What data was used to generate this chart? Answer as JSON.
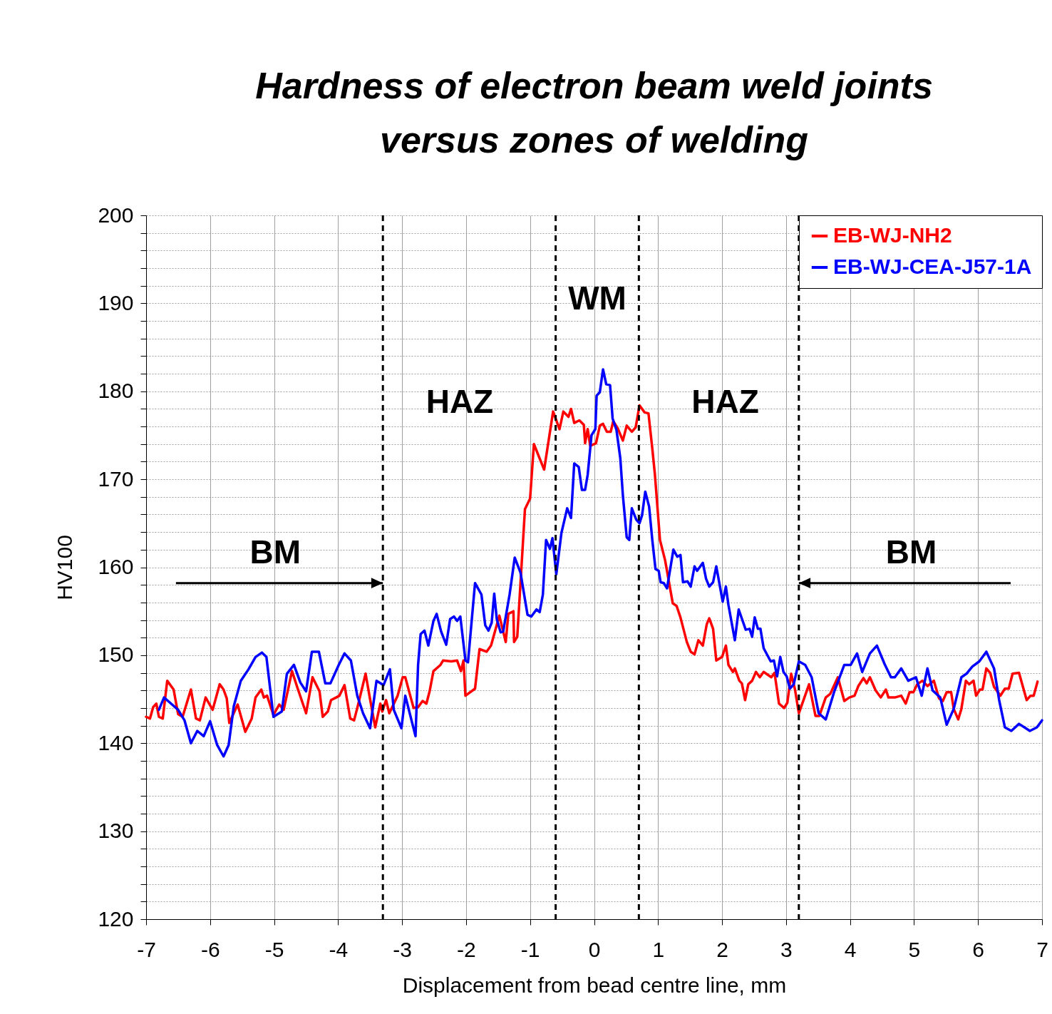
{
  "chart_data": {
    "type": "line",
    "title": "Hardness of electron beam weld joints\nversus zones  of welding",
    "xlabel": "Displacement from bead centre line, mm",
    "ylabel": "HV100",
    "xlim": [
      -7,
      7
    ],
    "xticks": [
      -7,
      -6,
      -5,
      -4,
      -3,
      -2,
      -1,
      0,
      1,
      2,
      3,
      4,
      5,
      6,
      7
    ],
    "ylim": [
      120,
      200
    ],
    "yticks": [
      120,
      {
        "value": 122,
        "label": null
      },
      {
        "value": 124,
        "label": null
      },
      {
        "value": 126,
        "label": null
      },
      {
        "value": 128,
        "label": null
      },
      130,
      {
        "value": 132,
        "label": null
      },
      {
        "value": 134,
        "label": null
      },
      {
        "value": 136,
        "label": null
      },
      {
        "value": 138,
        "label": null
      },
      140,
      {
        "value": 142,
        "label": null
      },
      {
        "value": 144,
        "label": null
      },
      {
        "value": 146,
        "label": null
      },
      {
        "value": 148,
        "label": null
      },
      150,
      {
        "value": 152,
        "label": null
      },
      {
        "value": 154,
        "label": null
      },
      {
        "value": 156,
        "label": null
      },
      {
        "value": 158,
        "label": null
      },
      160,
      {
        "value": 162,
        "label": null
      },
      {
        "value": 164,
        "label": null
      },
      {
        "value": 166,
        "label": null
      },
      {
        "value": 168,
        "label": null
      },
      170,
      {
        "value": 172,
        "label": null
      },
      {
        "value": 174,
        "label": null
      },
      {
        "value": 176,
        "label": null
      },
      {
        "value": 178,
        "label": null
      },
      180,
      {
        "value": 182,
        "label": null
      },
      {
        "value": 184,
        "label": null
      },
      {
        "value": 186,
        "label": null
      },
      {
        "value": 188,
        "label": null
      },
      190,
      {
        "value": 192,
        "label": null
      },
      {
        "value": 194,
        "label": null
      },
      {
        "value": 196,
        "label": null
      },
      {
        "value": 198,
        "label": null
      },
      200
    ],
    "grid": true,
    "legend": "top right",
    "series": [
      {
        "name": "EB-WJ-NH2",
        "color": "#ff0000",
        "x": [
          -7.0,
          -6.94,
          -6.89,
          -6.84,
          -6.8,
          -6.74,
          -6.67,
          -6.57,
          -6.5,
          -6.43,
          -6.3,
          -6.22,
          -6.16,
          -6.07,
          -5.96,
          -5.85,
          -5.79,
          -5.74,
          -5.7,
          -5.57,
          -5.45,
          -5.35,
          -5.29,
          -5.2,
          -5.16,
          -5.11,
          -5.01,
          -4.92,
          -4.85,
          -4.72,
          -4.64,
          -4.5,
          -4.4,
          -4.29,
          -4.24,
          -4.16,
          -4.11,
          -4.03,
          -3.98,
          -3.9,
          -3.81,
          -3.75,
          -3.7,
          -3.57,
          -3.51,
          -3.42,
          -3.34,
          -3.31,
          -3.25,
          -3.2,
          -3.07,
          -2.99,
          -2.95,
          -2.88,
          -2.82,
          -2.75,
          -2.68,
          -2.62,
          -2.57,
          -2.51,
          -2.4,
          -2.36,
          -2.23,
          -2.14,
          -2.08,
          -2.04,
          -2.01,
          -1.86,
          -1.79,
          -1.68,
          -1.61,
          -1.48,
          -1.38,
          -1.34,
          -1.26,
          -1.25,
          -1.2,
          -1.08,
          -1.0,
          -0.94,
          -0.78,
          -0.64,
          -0.54,
          -0.48,
          -0.4,
          -0.36,
          -0.31,
          -0.23,
          -0.16,
          -0.14,
          -0.1,
          -0.06,
          0.03,
          0.09,
          0.14,
          0.2,
          0.26,
          0.3,
          0.37,
          0.45,
          0.51,
          0.59,
          0.65,
          0.71,
          0.79,
          0.85,
          0.91,
          0.95,
          1.03,
          1.11,
          1.23,
          1.29,
          1.35,
          1.45,
          1.51,
          1.57,
          1.63,
          1.7,
          1.76,
          1.8,
          1.86,
          1.91,
          2.0,
          2.06,
          2.1,
          2.17,
          2.2,
          2.27,
          2.31,
          2.36,
          2.41,
          2.47,
          2.53,
          2.59,
          2.65,
          2.77,
          2.82,
          2.89,
          2.97,
          3.02,
          3.08,
          3.14,
          3.2,
          3.36,
          3.46,
          3.52,
          3.62,
          3.69,
          3.81,
          3.91,
          3.99,
          4.07,
          4.13,
          4.21,
          4.26,
          4.31,
          4.4,
          4.48,
          4.56,
          4.6,
          4.7,
          4.8,
          4.87,
          4.93,
          4.99,
          5.05,
          5.13,
          5.21,
          5.31,
          5.39,
          5.45,
          5.51,
          5.58,
          5.62,
          5.69,
          5.74,
          5.81,
          5.86,
          5.93,
          5.97,
          6.03,
          6.07,
          6.13,
          6.19,
          6.25,
          6.35,
          6.42,
          6.48,
          6.54,
          6.64,
          6.76,
          6.82,
          6.87,
          6.93
        ],
        "values": [
          143.0,
          142.8,
          144.1,
          144.5,
          143.0,
          142.8,
          147.1,
          146.1,
          143.3,
          143.0,
          146.1,
          142.8,
          142.6,
          145.2,
          143.8,
          146.7,
          146.1,
          145.1,
          142.3,
          144.4,
          141.3,
          142.8,
          145.2,
          146.1,
          145.2,
          145.4,
          143.2,
          144.4,
          143.8,
          148.2,
          146.4,
          143.4,
          147.5,
          145.9,
          143.0,
          143.6,
          144.9,
          145.2,
          145.4,
          146.6,
          142.8,
          142.6,
          144.0,
          147.9,
          145.4,
          141.8,
          144.5,
          143.6,
          144.9,
          143.4,
          145.4,
          147.5,
          147.5,
          145.6,
          144.0,
          144.1,
          144.8,
          144.5,
          145.9,
          148.2,
          148.9,
          149.4,
          149.3,
          149.4,
          148.2,
          149.4,
          145.4,
          146.2,
          150.7,
          150.4,
          151.1,
          154.5,
          151.5,
          154.7,
          155.0,
          151.5,
          152.1,
          166.6,
          167.8,
          174.0,
          171.1,
          177.7,
          175.7,
          177.7,
          177.1,
          178.0,
          176.4,
          176.7,
          176.2,
          174.1,
          175.7,
          173.8,
          174.1,
          176.1,
          176.3,
          175.4,
          175.4,
          176.6,
          175.8,
          174.4,
          176.1,
          175.4,
          175.9,
          178.4,
          177.6,
          177.5,
          173.5,
          170.6,
          163.1,
          160.8,
          155.9,
          155.6,
          154.3,
          151.5,
          150.4,
          150.1,
          151.7,
          151.1,
          153.5,
          154.2,
          153.0,
          149.4,
          149.8,
          151.1,
          148.9,
          148.1,
          148.5,
          147.1,
          146.8,
          144.9,
          146.7,
          147.1,
          148.1,
          147.5,
          148.1,
          147.5,
          148.0,
          144.5,
          144.0,
          144.6,
          147.9,
          146.1,
          143.4,
          146.7,
          143.1,
          143.1,
          145.2,
          145.6,
          147.5,
          144.8,
          145.2,
          145.4,
          146.5,
          147.4,
          146.8,
          147.5,
          146.0,
          145.2,
          146.1,
          145.2,
          145.2,
          145.4,
          144.5,
          145.8,
          145.8,
          146.7,
          147.1,
          146.5,
          147.1,
          145.1,
          144.8,
          145.8,
          145.8,
          143.9,
          142.7,
          143.9,
          147.1,
          146.7,
          147.1,
          145.4,
          146.1,
          146.1,
          148.5,
          148.0,
          146.4,
          145.4,
          146.2,
          146.2,
          147.9,
          148.0,
          144.9,
          145.4,
          145.4,
          147.0
        ]
      },
      {
        "name": "EB-WJ-CEA-J57-1A",
        "color": "#0000ff",
        "x": [
          -6.8,
          -6.72,
          -6.61,
          -6.5,
          -6.4,
          -6.3,
          -6.2,
          -6.1,
          -6.0,
          -5.89,
          -5.79,
          -5.71,
          -5.63,
          -5.52,
          -5.4,
          -5.29,
          -5.19,
          -5.12,
          -5.01,
          -4.88,
          -4.8,
          -4.69,
          -4.59,
          -4.5,
          -4.41,
          -4.3,
          -4.2,
          -4.12,
          -3.99,
          -3.9,
          -3.8,
          -3.7,
          -3.61,
          -3.5,
          -3.4,
          -3.29,
          -3.19,
          -3.13,
          -3.01,
          -2.95,
          -2.79,
          -2.75,
          -2.71,
          -2.65,
          -2.59,
          -2.51,
          -2.46,
          -2.39,
          -2.31,
          -2.25,
          -2.19,
          -2.14,
          -2.09,
          -2.01,
          -1.97,
          -1.86,
          -1.76,
          -1.7,
          -1.65,
          -1.6,
          -1.56,
          -1.52,
          -1.46,
          -1.42,
          -1.32,
          -1.24,
          -1.15,
          -1.04,
          -0.98,
          -0.9,
          -0.85,
          -0.8,
          -0.75,
          -0.69,
          -0.65,
          -0.59,
          -0.51,
          -0.42,
          -0.36,
          -0.31,
          -0.24,
          -0.19,
          -0.14,
          -0.1,
          -0.04,
          0.02,
          0.04,
          0.09,
          0.14,
          0.19,
          0.25,
          0.29,
          0.35,
          0.41,
          0.45,
          0.51,
          0.55,
          0.59,
          0.66,
          0.71,
          0.75,
          0.8,
          0.86,
          0.91,
          0.96,
          1.01,
          1.04,
          1.09,
          1.14,
          1.24,
          1.3,
          1.35,
          1.39,
          1.46,
          1.51,
          1.57,
          1.61,
          1.7,
          1.75,
          1.8,
          1.86,
          1.91,
          2.01,
          2.06,
          2.1,
          2.2,
          2.26,
          2.37,
          2.43,
          2.47,
          2.51,
          2.56,
          2.6,
          2.65,
          2.76,
          2.81,
          2.86,
          2.91,
          2.96,
          3.01,
          3.06,
          3.12,
          3.2,
          3.3,
          3.4,
          3.51,
          3.62,
          3.75,
          3.91,
          4.01,
          4.11,
          4.19,
          4.31,
          4.42,
          4.54,
          4.64,
          4.7,
          4.8,
          4.91,
          5.03,
          5.12,
          5.21,
          5.29,
          5.41,
          5.51,
          5.62,
          5.74,
          5.82,
          5.91,
          6.02,
          6.13,
          6.25,
          6.33,
          6.42,
          6.52,
          6.64,
          6.81,
          6.92,
          7.0
        ],
        "values": [
          143.8,
          145.2,
          144.5,
          143.8,
          142.6,
          140.0,
          141.4,
          140.8,
          142.5,
          139.8,
          138.5,
          139.8,
          144.2,
          147.1,
          148.4,
          149.8,
          150.3,
          149.8,
          143.0,
          143.6,
          147.9,
          148.9,
          146.9,
          145.9,
          150.4,
          150.4,
          146.8,
          146.8,
          148.9,
          150.2,
          149.4,
          145.4,
          143.4,
          141.7,
          147.1,
          146.6,
          148.4,
          143.8,
          141.7,
          145.4,
          140.8,
          148.9,
          152.4,
          152.8,
          151.1,
          153.9,
          154.7,
          152.7,
          151.2,
          154.1,
          154.4,
          153.9,
          154.4,
          149.4,
          149.2,
          158.2,
          156.9,
          153.4,
          152.8,
          153.7,
          157.0,
          154.1,
          152.6,
          152.7,
          156.9,
          161.1,
          159.4,
          154.6,
          154.4,
          155.2,
          154.9,
          156.9,
          163.1,
          162.1,
          163.3,
          159.2,
          163.9,
          166.7,
          165.6,
          171.8,
          171.4,
          168.8,
          168.8,
          170.5,
          175.0,
          175.7,
          179.5,
          179.9,
          182.5,
          180.8,
          180.7,
          176.9,
          175.6,
          172.4,
          168.2,
          163.4,
          163.1,
          166.7,
          165.4,
          165.0,
          165.9,
          168.6,
          166.9,
          163.1,
          159.8,
          159.6,
          158.3,
          158.2,
          157.6,
          162.0,
          161.2,
          161.4,
          158.3,
          158.4,
          157.8,
          160.1,
          159.6,
          160.5,
          158.7,
          157.8,
          158.3,
          160.1,
          156.1,
          157.8,
          155.7,
          151.7,
          155.2,
          152.9,
          153.0,
          152.1,
          154.3,
          153.0,
          153.0,
          150.8,
          149.3,
          149.4,
          147.6,
          149.8,
          148.1,
          147.6,
          146.2,
          146.7,
          149.3,
          148.9,
          147.5,
          143.4,
          142.7,
          145.8,
          148.9,
          148.9,
          150.2,
          148.1,
          150.2,
          151.1,
          149.0,
          147.5,
          147.5,
          148.5,
          147.1,
          147.5,
          145.4,
          148.5,
          146.0,
          145.2,
          142.1,
          143.9,
          147.5,
          147.9,
          148.7,
          149.3,
          150.4,
          148.5,
          144.9,
          141.8,
          141.4,
          142.2,
          141.4,
          141.8,
          142.6
        ]
      }
    ],
    "ref_lines": [
      {
        "axis": "x",
        "value": -3.3,
        "label": null,
        "color": "#000000",
        "line_style": "dashed"
      },
      {
        "axis": "x",
        "value": -0.6,
        "label": null,
        "color": "#000000",
        "line_style": "dashed"
      },
      {
        "axis": "x",
        "value": 0.7,
        "label": null,
        "color": "#000000",
        "line_style": "dashed"
      },
      {
        "axis": "x",
        "value": 3.2,
        "label": null,
        "color": "#000000",
        "line_style": "dashed"
      }
    ],
    "annotations": [
      "WM",
      "HAZ",
      "HAZ",
      "BM",
      "BM"
    ]
  }
}
